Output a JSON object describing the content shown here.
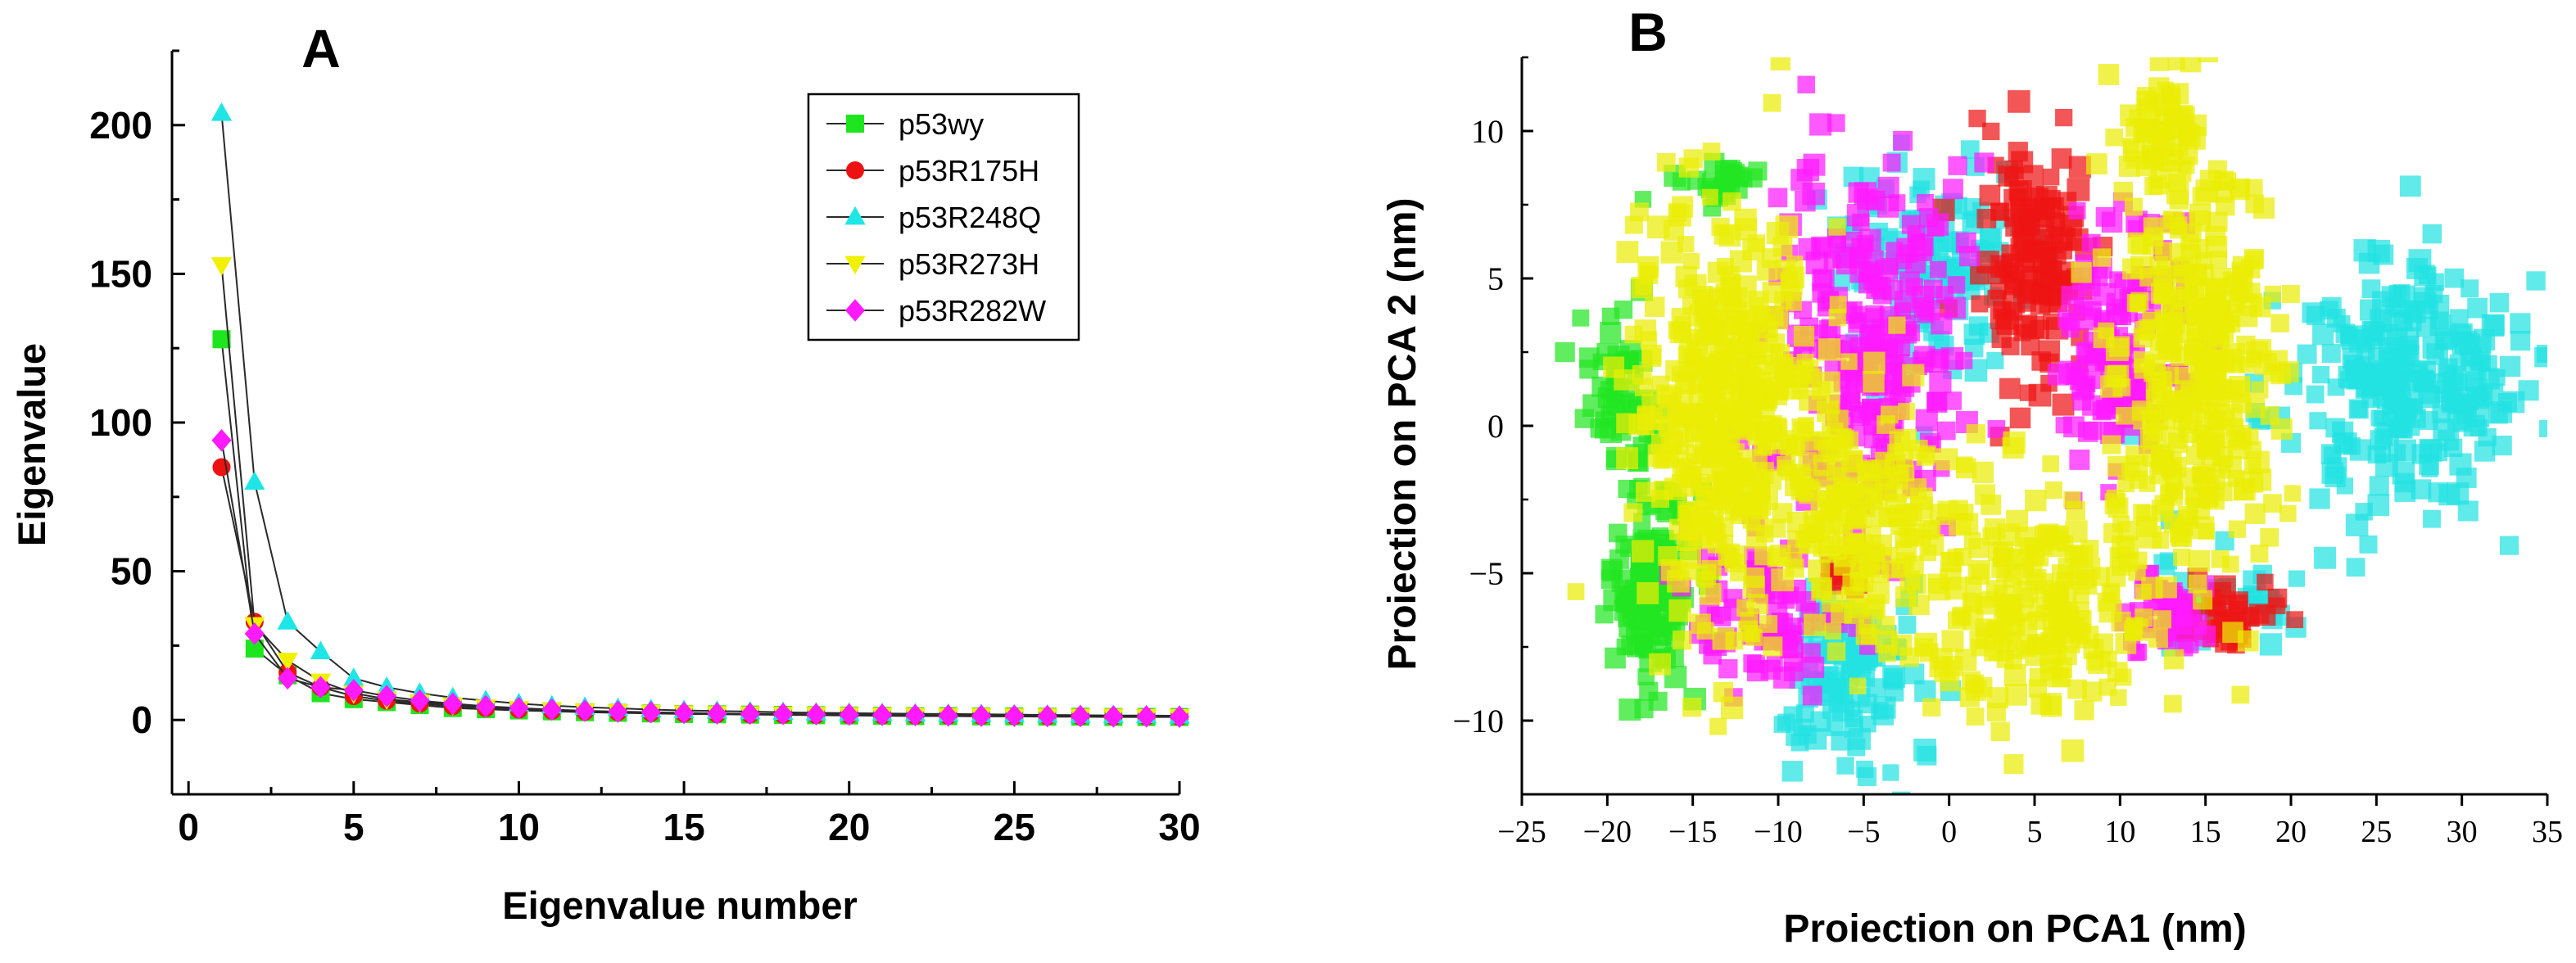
{
  "chart_data": [
    {
      "type": "line",
      "panel_label": "A",
      "title": "",
      "xlabel": "Eigenvalue number",
      "ylabel": "Eigenvalue",
      "xlim": [
        -0.5,
        30
      ],
      "ylim": [
        -25,
        225
      ],
      "xticks": [
        0,
        5,
        10,
        15,
        20,
        25,
        30
      ],
      "yticks": [
        0,
        50,
        100,
        150,
        200
      ],
      "x": [
        1,
        2,
        3,
        4,
        5,
        6,
        7,
        8,
        9,
        10,
        11,
        12,
        13,
        14,
        15,
        16,
        17,
        18,
        19,
        20,
        21,
        22,
        23,
        24,
        25,
        26,
        27,
        28,
        29,
        30
      ],
      "legend_position": "top-right",
      "series": [
        {
          "name": "p53wy",
          "marker": "square",
          "color": "#1ee61e",
          "values": [
            128,
            24,
            15,
            9,
            7,
            6,
            5,
            4,
            3.6,
            3.2,
            2.9,
            2.6,
            2.4,
            2.2,
            2.0,
            1.9,
            1.8,
            1.7,
            1.6,
            1.5,
            1.4,
            1.3,
            1.3,
            1.2,
            1.2,
            1.1,
            1.1,
            1.0,
            1.0,
            1.0
          ]
        },
        {
          "name": "p53R175H",
          "marker": "circle",
          "color": "#ee1111",
          "values": [
            85,
            33,
            16,
            11,
            8,
            6.5,
            5.5,
            4.6,
            4.0,
            3.5,
            3.1,
            2.8,
            2.6,
            2.4,
            2.2,
            2.0,
            1.9,
            1.8,
            1.7,
            1.6,
            1.5,
            1.4,
            1.4,
            1.3,
            1.3,
            1.2,
            1.2,
            1.1,
            1.1,
            1.0
          ]
        },
        {
          "name": "p53R248Q",
          "marker": "triangle-up",
          "color": "#1ee6e6",
          "values": [
            204,
            80,
            33,
            23,
            14,
            11,
            9,
            7.5,
            6.5,
            5.5,
            4.8,
            4.3,
            3.9,
            3.5,
            3.2,
            3.0,
            2.8,
            2.6,
            2.4,
            2.3,
            2.2,
            2.1,
            2.0,
            1.9,
            1.8,
            1.7,
            1.6,
            1.5,
            1.5,
            1.4
          ]
        },
        {
          "name": "p53R273H",
          "marker": "triangle-down",
          "color": "#f0f000",
          "values": [
            153,
            32,
            20,
            13,
            9,
            7,
            6,
            5,
            4.3,
            3.8,
            3.3,
            3.0,
            2.7,
            2.5,
            2.3,
            2.1,
            2.0,
            1.9,
            1.8,
            1.7,
            1.6,
            1.5,
            1.4,
            1.4,
            1.3,
            1.3,
            1.2,
            1.2,
            1.1,
            1.1
          ]
        },
        {
          "name": "p53R282W",
          "marker": "diamond",
          "color": "#ff1aff",
          "values": [
            94,
            29,
            14,
            11,
            10,
            8,
            6.5,
            5.5,
            4.6,
            4.0,
            3.5,
            3.1,
            2.8,
            2.6,
            2.4,
            2.2,
            2.1,
            2.0,
            1.9,
            1.8,
            1.7,
            1.6,
            1.5,
            1.4,
            1.4,
            1.3,
            1.3,
            1.2,
            1.2,
            1.1
          ]
        }
      ]
    },
    {
      "type": "scatter",
      "panel_label": "B",
      "title": "",
      "xlabel": "Proiection on PCA1 (nm)",
      "ylabel": "Proiection on PCA 2 (nm)",
      "xlim": [
        -25,
        35
      ],
      "ylim": [
        -12.5,
        12.5
      ],
      "xticks": [
        -25,
        -20,
        -15,
        -10,
        -5,
        0,
        5,
        10,
        15,
        20,
        25,
        30,
        35
      ],
      "yticks": [
        -10,
        -5,
        0,
        5,
        10
      ],
      "marker": "square",
      "legend_position": "none",
      "series": [
        {
          "name": "p53wy",
          "color": "#22e622",
          "clouds": [
            {
              "cx": -17.5,
              "cy": -5.5,
              "sx": 1.3,
              "sy": 1.7,
              "n": 140
            },
            {
              "cx": -19.0,
              "cy": 1.0,
              "sx": 1.0,
              "sy": 1.3,
              "n": 60
            },
            {
              "cx": -13.5,
              "cy": 8.3,
              "sx": 1.3,
              "sy": 0.4,
              "n": 25
            }
          ]
        },
        {
          "name": "p53R248Q",
          "color": "#22e2e2",
          "clouds": [
            {
              "cx": 26.0,
              "cy": 1.5,
              "sx": 3.8,
              "sy": 2.1,
              "n": 270
            },
            {
              "cx": -6.0,
              "cy": -8.5,
              "sx": 2.2,
              "sy": 1.7,
              "n": 120
            },
            {
              "cx": -1.0,
              "cy": 5.5,
              "sx": 3.0,
              "sy": 1.8,
              "n": 130
            },
            {
              "cx": 16.0,
              "cy": -6.0,
              "sx": 2.0,
              "sy": 0.8,
              "n": 40
            }
          ]
        },
        {
          "name": "p53R175H",
          "color": "#ee1515",
          "clouds": [
            {
              "cx": 5.0,
              "cy": 5.5,
              "sx": 1.6,
              "sy": 2.0,
              "n": 150
            },
            {
              "cx": 16.5,
              "cy": -6.5,
              "sx": 1.8,
              "sy": 0.6,
              "n": 40
            },
            {
              "cx": -5.5,
              "cy": -5.2,
              "sx": 0.6,
              "sy": 0.5,
              "n": 15
            }
          ]
        },
        {
          "name": "p53R282W",
          "color": "#ff1aff",
          "clouds": [
            {
              "cx": -4.5,
              "cy": 3.0,
              "sx": 2.6,
              "sy": 3.0,
              "n": 240
            },
            {
              "cx": 10.0,
              "cy": 2.5,
              "sx": 1.7,
              "sy": 2.5,
              "n": 120
            },
            {
              "cx": -10.5,
              "cy": -6.5,
              "sx": 2.2,
              "sy": 1.4,
              "n": 80
            },
            {
              "cx": 12.5,
              "cy": -6.5,
              "sx": 1.4,
              "sy": 0.9,
              "n": 40
            }
          ]
        },
        {
          "name": "p53R273H",
          "color": "#eaed05",
          "clouds": [
            {
              "cx": -13.0,
              "cy": 0.5,
              "sx": 2.6,
              "sy": 3.6,
              "n": 440
            },
            {
              "cx": 14.5,
              "cy": 2.0,
              "sx": 2.3,
              "sy": 3.6,
              "n": 340
            },
            {
              "cx": 5.0,
              "cy": -6.0,
              "sx": 3.6,
              "sy": 2.0,
              "n": 230
            },
            {
              "cx": -5.0,
              "cy": -3.0,
              "sx": 2.8,
              "sy": 2.0,
              "n": 180
            },
            {
              "cx": 12.5,
              "cy": 10.0,
              "sx": 1.4,
              "sy": 1.2,
              "n": 60
            }
          ]
        }
      ]
    }
  ]
}
